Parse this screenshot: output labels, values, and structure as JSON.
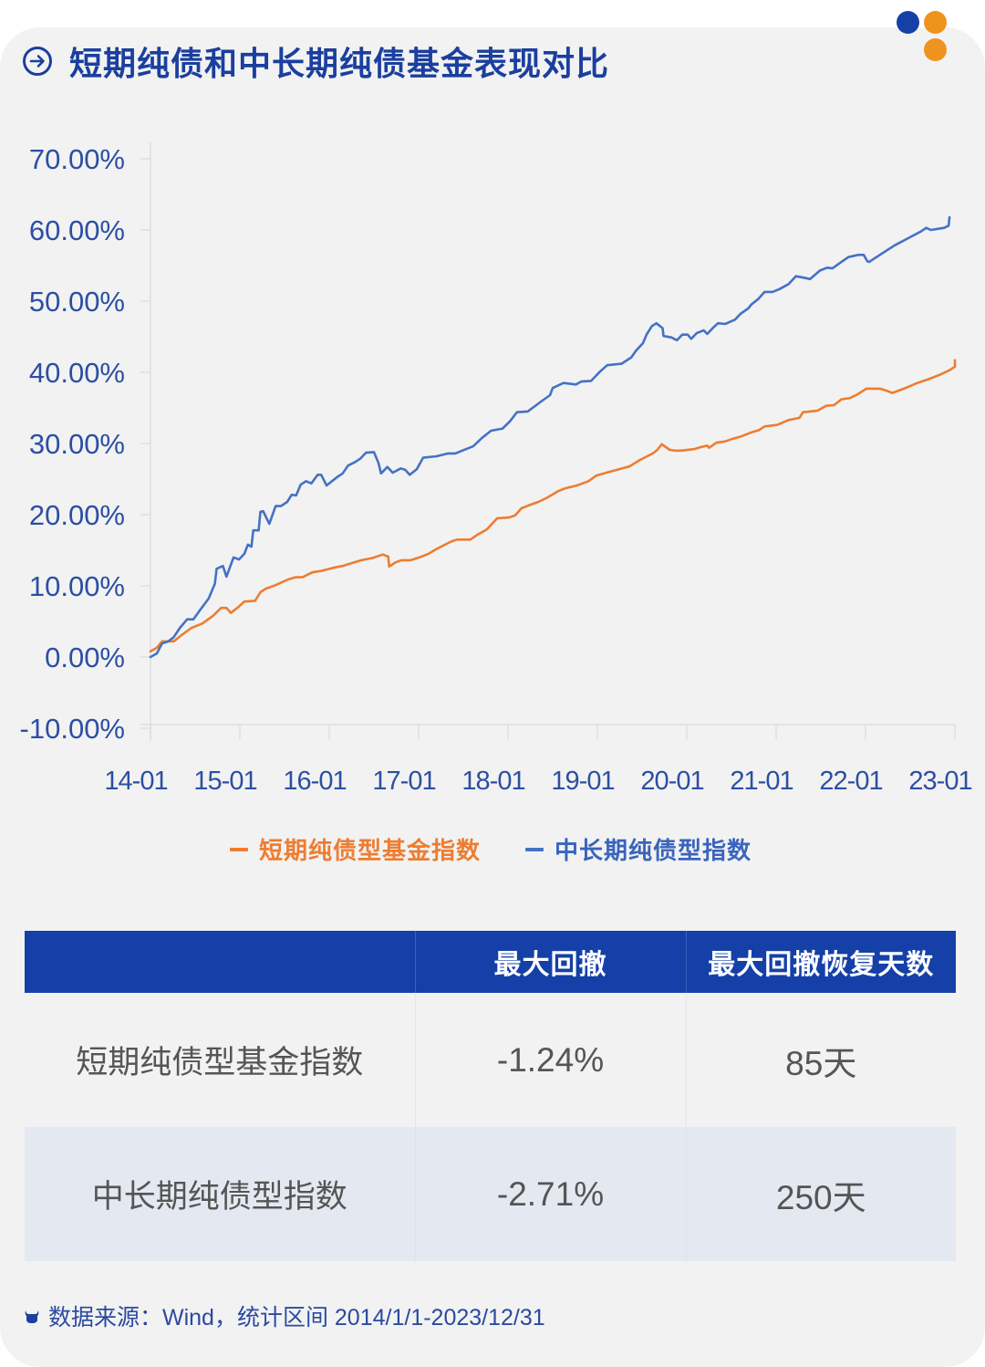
{
  "header": {
    "title": "短期纯债和中长期纯债基金表现对比",
    "title_icon": "arrow-right-circle-icon",
    "decoration": "three-dots-logo",
    "colors": {
      "title": "#1a3f9e",
      "dot_blue": "#1540a8",
      "dot_orange": "#f0921e",
      "card_bg": "#f2f2f2"
    }
  },
  "chart_data": {
    "type": "line",
    "title": "短期纯债和中长期纯债基金表现对比",
    "xlabel": "",
    "ylabel": "",
    "x_tick_labels": [
      "14-01",
      "15-01",
      "16-01",
      "17-01",
      "18-01",
      "19-01",
      "20-01",
      "21-01",
      "22-01",
      "23-01"
    ],
    "y_tick_labels": [
      "-10.00%",
      "0.00%",
      "10.00%",
      "20.00%",
      "30.00%",
      "40.00%",
      "50.00%",
      "60.00%",
      "70.00%"
    ],
    "ylim": [
      -10,
      70
    ],
    "xlim": [
      2014.0,
      2023.0
    ],
    "grid": false,
    "legend_position": "bottom",
    "x_unit": "year (decimal, 14-01 = 2014.0)",
    "y_unit": "percent cumulative return",
    "series": [
      {
        "name": "短期纯债型基金指数",
        "color": "#ed7d31",
        "points": [
          [
            2014.0,
            0.8
          ],
          [
            2014.07,
            1.3
          ],
          [
            2014.13,
            2.2
          ],
          [
            2014.26,
            2.2
          ],
          [
            2014.34,
            3.0
          ],
          [
            2014.46,
            4.1
          ],
          [
            2014.58,
            4.7
          ],
          [
            2014.7,
            5.8
          ],
          [
            2014.79,
            6.9
          ],
          [
            2014.85,
            6.9
          ],
          [
            2014.9,
            6.2
          ],
          [
            2014.99,
            7.1
          ],
          [
            2015.05,
            7.8
          ],
          [
            2015.17,
            7.9
          ],
          [
            2015.23,
            9.1
          ],
          [
            2015.29,
            9.6
          ],
          [
            2015.4,
            10.1
          ],
          [
            2015.54,
            10.9
          ],
          [
            2015.62,
            11.2
          ],
          [
            2015.7,
            11.2
          ],
          [
            2015.81,
            11.9
          ],
          [
            2015.91,
            12.1
          ],
          [
            2015.97,
            12.3
          ],
          [
            2016.07,
            12.6
          ],
          [
            2016.15,
            12.8
          ],
          [
            2016.28,
            13.3
          ],
          [
            2016.36,
            13.6
          ],
          [
            2016.48,
            13.9
          ],
          [
            2016.6,
            14.4
          ],
          [
            2016.66,
            14.1
          ],
          [
            2016.67,
            12.7
          ],
          [
            2016.74,
            13.3
          ],
          [
            2016.81,
            13.6
          ],
          [
            2016.91,
            13.6
          ],
          [
            2017.01,
            14.0
          ],
          [
            2017.11,
            14.5
          ],
          [
            2017.19,
            15.1
          ],
          [
            2017.25,
            15.5
          ],
          [
            2017.36,
            16.2
          ],
          [
            2017.43,
            16.5
          ],
          [
            2017.58,
            16.5
          ],
          [
            2017.66,
            17.2
          ],
          [
            2017.76,
            17.9
          ],
          [
            2017.88,
            19.5
          ],
          [
            2018.01,
            19.6
          ],
          [
            2018.08,
            19.9
          ],
          [
            2018.15,
            20.9
          ],
          [
            2018.23,
            21.3
          ],
          [
            2018.34,
            21.8
          ],
          [
            2018.44,
            22.4
          ],
          [
            2018.56,
            23.3
          ],
          [
            2018.64,
            23.7
          ],
          [
            2018.77,
            24.1
          ],
          [
            2018.9,
            24.7
          ],
          [
            2018.99,
            25.5
          ],
          [
            2019.1,
            25.9
          ],
          [
            2019.28,
            26.5
          ],
          [
            2019.36,
            26.8
          ],
          [
            2019.48,
            27.7
          ],
          [
            2019.62,
            28.6
          ],
          [
            2019.67,
            29.1
          ],
          [
            2019.72,
            29.9
          ],
          [
            2019.81,
            29.1
          ],
          [
            2019.87,
            29.0
          ],
          [
            2019.94,
            29.0
          ],
          [
            2020.08,
            29.2
          ],
          [
            2020.16,
            29.5
          ],
          [
            2020.23,
            29.7
          ],
          [
            2020.25,
            29.4
          ],
          [
            2020.33,
            30.1
          ],
          [
            2020.43,
            30.3
          ],
          [
            2020.5,
            30.6
          ],
          [
            2020.61,
            31.0
          ],
          [
            2020.71,
            31.5
          ],
          [
            2020.81,
            31.9
          ],
          [
            2020.87,
            32.4
          ],
          [
            2021.01,
            32.6
          ],
          [
            2021.14,
            33.3
          ],
          [
            2021.26,
            33.6
          ],
          [
            2021.3,
            34.4
          ],
          [
            2021.38,
            34.5
          ],
          [
            2021.46,
            34.6
          ],
          [
            2021.56,
            35.3
          ],
          [
            2021.65,
            35.4
          ],
          [
            2021.73,
            36.2
          ],
          [
            2021.83,
            36.4
          ],
          [
            2021.91,
            36.9
          ],
          [
            2022.01,
            37.7
          ],
          [
            2022.16,
            37.7
          ],
          [
            2022.24,
            37.4
          ],
          [
            2022.3,
            37.1
          ],
          [
            2022.43,
            37.7
          ],
          [
            2022.58,
            38.5
          ],
          [
            2022.72,
            39.1
          ],
          [
            2022.84,
            39.7
          ],
          [
            2022.94,
            40.3
          ],
          [
            2023.0,
            40.8
          ],
          [
            2023.0,
            41.7
          ]
        ]
      },
      {
        "name": "中长期纯债型指数",
        "color": "#4472c4",
        "points": [
          [
            2014.0,
            0.0
          ],
          [
            2014.07,
            0.5
          ],
          [
            2014.13,
            1.9
          ],
          [
            2014.2,
            2.2
          ],
          [
            2014.26,
            2.8
          ],
          [
            2014.33,
            4.1
          ],
          [
            2014.41,
            5.3
          ],
          [
            2014.48,
            5.3
          ],
          [
            2014.56,
            6.7
          ],
          [
            2014.65,
            8.2
          ],
          [
            2014.72,
            10.3
          ],
          [
            2014.74,
            12.4
          ],
          [
            2014.81,
            12.8
          ],
          [
            2014.85,
            11.3
          ],
          [
            2014.93,
            14.0
          ],
          [
            2014.99,
            13.7
          ],
          [
            2015.05,
            14.5
          ],
          [
            2015.09,
            15.8
          ],
          [
            2015.13,
            15.5
          ],
          [
            2015.15,
            17.8
          ],
          [
            2015.21,
            17.8
          ],
          [
            2015.23,
            20.4
          ],
          [
            2015.26,
            20.5
          ],
          [
            2015.33,
            18.7
          ],
          [
            2015.4,
            21.2
          ],
          [
            2015.46,
            21.2
          ],
          [
            2015.53,
            21.8
          ],
          [
            2015.58,
            22.8
          ],
          [
            2015.63,
            22.7
          ],
          [
            2015.68,
            24.2
          ],
          [
            2015.74,
            24.7
          ],
          [
            2015.8,
            24.4
          ],
          [
            2015.87,
            25.6
          ],
          [
            2015.91,
            25.6
          ],
          [
            2015.97,
            24.1
          ],
          [
            2016.09,
            25.3
          ],
          [
            2016.15,
            25.8
          ],
          [
            2016.21,
            26.9
          ],
          [
            2016.29,
            27.4
          ],
          [
            2016.35,
            27.9
          ],
          [
            2016.41,
            28.7
          ],
          [
            2016.5,
            28.8
          ],
          [
            2016.55,
            27.3
          ],
          [
            2016.58,
            25.8
          ],
          [
            2016.65,
            26.7
          ],
          [
            2016.71,
            25.9
          ],
          [
            2016.8,
            26.5
          ],
          [
            2016.85,
            26.3
          ],
          [
            2016.9,
            25.6
          ],
          [
            2016.98,
            26.4
          ],
          [
            2017.05,
            28.0
          ],
          [
            2017.2,
            28.2
          ],
          [
            2017.33,
            28.6
          ],
          [
            2017.41,
            28.6
          ],
          [
            2017.53,
            29.2
          ],
          [
            2017.61,
            29.6
          ],
          [
            2017.71,
            30.8
          ],
          [
            2017.81,
            31.8
          ],
          [
            2017.94,
            32.1
          ],
          [
            2018.02,
            33.1
          ],
          [
            2018.1,
            34.4
          ],
          [
            2018.22,
            34.5
          ],
          [
            2018.37,
            35.9
          ],
          [
            2018.47,
            36.8
          ],
          [
            2018.5,
            37.8
          ],
          [
            2018.62,
            38.5
          ],
          [
            2018.76,
            38.3
          ],
          [
            2018.82,
            38.7
          ],
          [
            2018.93,
            38.8
          ],
          [
            2019.03,
            40.1
          ],
          [
            2019.11,
            41.0
          ],
          [
            2019.27,
            41.2
          ],
          [
            2019.38,
            42.1
          ],
          [
            2019.43,
            43.0
          ],
          [
            2019.51,
            44.1
          ],
          [
            2019.55,
            45.3
          ],
          [
            2019.61,
            46.5
          ],
          [
            2019.66,
            46.9
          ],
          [
            2019.73,
            46.2
          ],
          [
            2019.74,
            45.1
          ],
          [
            2019.83,
            44.9
          ],
          [
            2019.89,
            44.5
          ],
          [
            2019.95,
            45.3
          ],
          [
            2020.01,
            45.3
          ],
          [
            2020.05,
            44.7
          ],
          [
            2020.11,
            45.5
          ],
          [
            2020.19,
            45.9
          ],
          [
            2020.23,
            45.4
          ],
          [
            2020.29,
            46.2
          ],
          [
            2020.35,
            46.9
          ],
          [
            2020.43,
            46.8
          ],
          [
            2020.54,
            47.4
          ],
          [
            2020.6,
            48.2
          ],
          [
            2020.69,
            49.0
          ],
          [
            2020.72,
            49.5
          ],
          [
            2020.8,
            50.3
          ],
          [
            2020.87,
            51.3
          ],
          [
            2020.96,
            51.3
          ],
          [
            2021.04,
            51.7
          ],
          [
            2021.14,
            52.4
          ],
          [
            2021.22,
            53.5
          ],
          [
            2021.31,
            53.3
          ],
          [
            2021.38,
            53.1
          ],
          [
            2021.49,
            54.3
          ],
          [
            2021.57,
            54.7
          ],
          [
            2021.63,
            54.6
          ],
          [
            2021.73,
            55.5
          ],
          [
            2021.81,
            56.2
          ],
          [
            2021.92,
            56.5
          ],
          [
            2021.98,
            56.5
          ],
          [
            2022.02,
            55.6
          ],
          [
            2022.04,
            55.5
          ],
          [
            2022.16,
            56.5
          ],
          [
            2022.32,
            57.8
          ],
          [
            2022.47,
            58.8
          ],
          [
            2022.62,
            59.8
          ],
          [
            2022.68,
            60.3
          ],
          [
            2022.73,
            60.0
          ],
          [
            2022.88,
            60.3
          ],
          [
            2022.93,
            60.6
          ],
          [
            2022.94,
            61.8
          ]
        ]
      }
    ]
  },
  "legend": {
    "items": [
      {
        "label": "短期纯债型基金指数",
        "color": "#ed7d31"
      },
      {
        "label": "中长期纯债型指数",
        "color": "#4472c4"
      }
    ]
  },
  "table": {
    "header_bg": "#1540a8",
    "columns": [
      "",
      "最大回撤",
      "最大回撤恢复天数"
    ],
    "rows": [
      {
        "name": "短期纯债型基金指数",
        "max_drawdown": "-1.24%",
        "recovery_days": "85天"
      },
      {
        "name": "中长期纯债型指数",
        "max_drawdown": "-2.71%",
        "recovery_days": "250天"
      }
    ]
  },
  "footer": {
    "source_icon": "ox-head-icon",
    "source_text": "数据来源：Wind，统计区间 2014/1/1-2023/12/31"
  }
}
